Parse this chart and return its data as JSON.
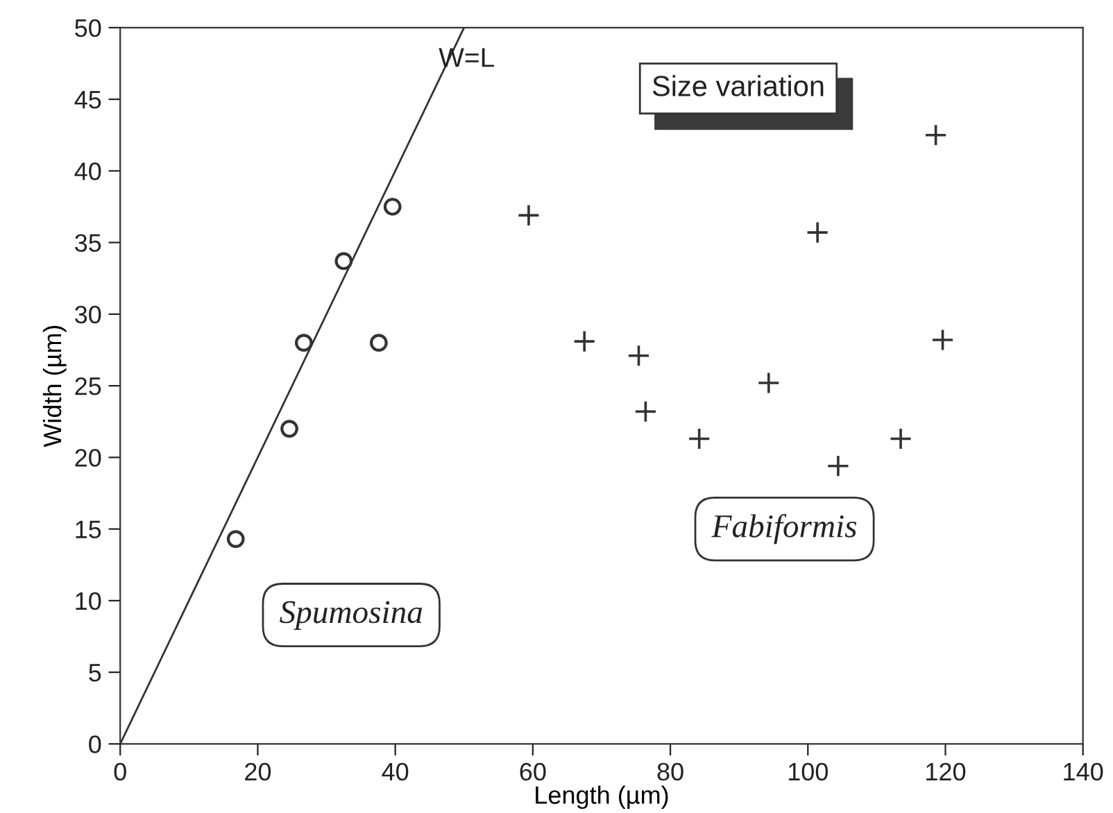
{
  "chart_data": {
    "type": "scatter",
    "title": "Size variation",
    "xlabel": "Length (µm)",
    "ylabel": "Width (µm)",
    "series": [
      {
        "name": "Spumosina",
        "marker": "circle",
        "color": "#333333",
        "x": [
          16.8,
          24.6,
          26.7,
          32.5,
          37.6,
          39.6
        ],
        "values": [
          14.3,
          22.0,
          28.0,
          33.7,
          28.0,
          37.5
        ]
      },
      {
        "name": "Fabiformis",
        "marker": "cross",
        "color": "#333333",
        "x": [
          118.6,
          59.4,
          101.4,
          67.5,
          119.6,
          75.4,
          94.3,
          76.4,
          84.2,
          113.5,
          104.4
        ],
        "values": [
          42.5,
          36.9,
          35.7,
          28.1,
          28.2,
          27.1,
          25.2,
          23.2,
          21.3,
          21.3,
          19.4
        ]
      },
      {
        "name": "W=L",
        "type": "line",
        "marker": "none",
        "color": "#333333",
        "x": [
          0,
          50
        ],
        "values": [
          0,
          50
        ]
      }
    ],
    "xlim": [
      0,
      140
    ],
    "ylim": [
      0,
      50
    ],
    "xticks": [
      0,
      20,
      40,
      60,
      80,
      100,
      120,
      140
    ],
    "yticks": [
      0,
      5,
      10,
      15,
      20,
      25,
      30,
      35,
      40,
      45,
      50
    ],
    "grid": false,
    "legend": false
  }
}
